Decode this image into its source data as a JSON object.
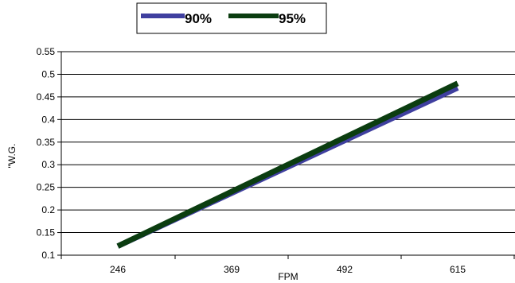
{
  "chart_data": {
    "type": "line",
    "title": "",
    "xlabel": "FPM",
    "ylabel": "\"W.G.",
    "categories": [
      "246",
      "369",
      "492",
      "615"
    ],
    "x": [
      246,
      615
    ],
    "ylim": [
      0.1,
      0.55
    ],
    "yticks": [
      "0.1",
      "0.15",
      "0.2",
      "0.25",
      "0.3",
      "0.35",
      "0.4",
      "0.45",
      "0.5",
      "0.55"
    ],
    "grid": true,
    "legend_position": "top-center",
    "series": [
      {
        "name": "90%",
        "color": "#3f3f9f",
        "x": [
          246,
          615
        ],
        "values": [
          0.12,
          0.47
        ]
      },
      {
        "name": "95%",
        "color": "#0b3d10",
        "x": [
          246,
          615
        ],
        "values": [
          0.12,
          0.48
        ]
      }
    ]
  }
}
